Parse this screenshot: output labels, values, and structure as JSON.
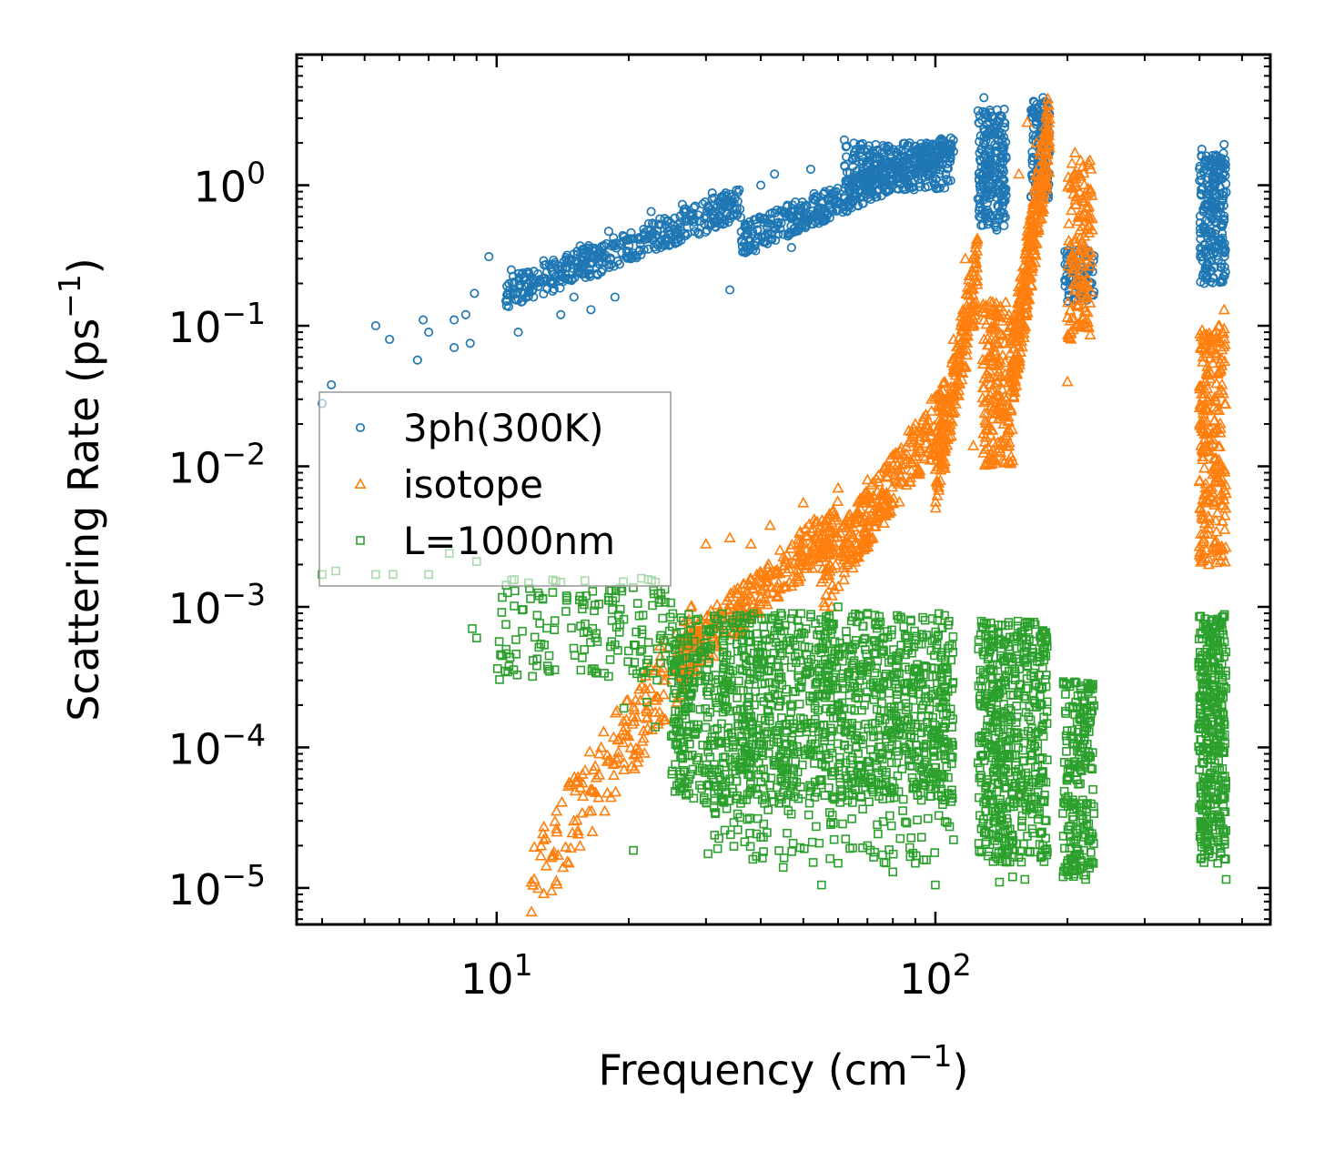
{
  "chart_data": {
    "type": "scatter",
    "xscale": "log",
    "yscale": "log",
    "xlim": [
      3.5,
      580
    ],
    "ylim": [
      5.5e-06,
      8.5
    ],
    "xlabel": {
      "base": "Frequency (cm",
      "sup": "−1",
      "tail": ")"
    },
    "ylabel": {
      "base": "Scattering Rate (ps",
      "sup": "−1",
      "tail": ")"
    },
    "xticks": [
      {
        "value": 10,
        "base": "10",
        "exp": "1"
      },
      {
        "value": 100,
        "base": "10",
        "exp": "2"
      }
    ],
    "yticks": [
      {
        "value": 1,
        "base": "10",
        "exp": "0"
      },
      {
        "value": 0.1,
        "base": "10",
        "exp": "−1"
      },
      {
        "value": 0.01,
        "base": "10",
        "exp": "−2"
      },
      {
        "value": 0.001,
        "base": "10",
        "exp": "−3"
      },
      {
        "value": 0.0001,
        "base": "10",
        "exp": "−4"
      },
      {
        "value": 1e-05,
        "base": "10",
        "exp": "−5"
      }
    ],
    "legend_position": "center-left",
    "series": [
      {
        "name": "3ph(300K)",
        "marker": "circle",
        "color": "#1f77b4",
        "points": [
          [
            4.0,
            0.028
          ],
          [
            4.2,
            0.038
          ],
          [
            5.3,
            0.1
          ],
          [
            5.7,
            0.08
          ],
          [
            6.6,
            0.057
          ],
          [
            6.8,
            0.11
          ],
          [
            7.0,
            0.09
          ],
          [
            8.0,
            0.07
          ],
          [
            8.0,
            0.11
          ],
          [
            8.5,
            0.12
          ],
          [
            8.7,
            0.075
          ],
          [
            8.9,
            0.17
          ],
          [
            9.6,
            0.31
          ],
          [
            10.5,
            0.15
          ],
          [
            10.8,
            0.25
          ],
          [
            11.2,
            0.09
          ],
          [
            11.5,
            0.22
          ],
          [
            12.2,
            0.2
          ],
          [
            12.8,
            0.29
          ],
          [
            13.3,
            0.2
          ],
          [
            14.0,
            0.12
          ],
          [
            14.5,
            0.26
          ],
          [
            15.0,
            0.16
          ],
          [
            15.5,
            0.37
          ],
          [
            16.4,
            0.13
          ],
          [
            17.0,
            0.23
          ],
          [
            18.0,
            0.47
          ],
          [
            18.6,
            0.16
          ],
          [
            19.3,
            0.33
          ],
          [
            21.0,
            0.42
          ],
          [
            22.5,
            0.65
          ],
          [
            24.5,
            0.56
          ],
          [
            26.5,
            0.73
          ],
          [
            28.0,
            0.62
          ],
          [
            31.0,
            0.88
          ],
          [
            34.0,
            0.18
          ],
          [
            36.0,
            0.59
          ],
          [
            40.0,
            1.0
          ],
          [
            43.0,
            1.2
          ],
          [
            46.0,
            0.72
          ],
          [
            47.0,
            0.36
          ],
          [
            52.0,
            1.3
          ],
          [
            56.0,
            0.9
          ],
          [
            62.0,
            2.1
          ],
          [
            68.0,
            1.6
          ],
          [
            72.0,
            1.75
          ],
          [
            78.0,
            1.9
          ],
          [
            85.0,
            1.6
          ],
          [
            95.0,
            1.5
          ],
          [
            106.0,
            1.1
          ],
          [
            129.0,
            4.2
          ],
          [
            138.0,
            0.48
          ],
          [
            176.0,
            4.2
          ],
          [
            200.0,
            0.27
          ],
          [
            225.0,
            0.2
          ],
          [
            405.0,
            1.8
          ],
          [
            410.0,
            0.2
          ],
          [
            455.0,
            1.95
          ]
        ],
        "bands": [
          {
            "x": [
              10.5,
              36
            ],
            "y": [
              0.17,
              0.75
            ],
            "n": 420,
            "trend": true
          },
          {
            "x": [
              36,
              110
            ],
            "y": [
              0.4,
              1.8
            ],
            "n": 450,
            "trend": true
          },
          {
            "x": [
              62,
              110
            ],
            "y": [
              0.9,
              2.0
            ],
            "n": 220,
            "trend": false
          },
          {
            "x": [
              125,
              145
            ],
            "y": [
              0.5,
              3.5
            ],
            "n": 220,
            "trend": false
          },
          {
            "x": [
              165,
              182
            ],
            "y": [
              0.8,
              4.0
            ],
            "n": 130,
            "trend": false
          },
          {
            "x": [
              196,
              230
            ],
            "y": [
              0.15,
              0.35
            ],
            "n": 80,
            "trend": false
          },
          {
            "x": [
              400,
              460
            ],
            "y": [
              0.2,
              1.7
            ],
            "n": 240,
            "trend": false
          }
        ]
      },
      {
        "name": "isotope",
        "marker": "triangle",
        "color": "#ff7f0e",
        "points": [
          [
            12.0,
            1.1e-05
          ],
          [
            13.5,
            1.8e-05
          ],
          [
            15.0,
            3e-05
          ],
          [
            16.5,
            5e-05
          ],
          [
            18.0,
            8e-05
          ],
          [
            20.0,
            0.00012
          ],
          [
            22.0,
            0.00018
          ],
          [
            24.0,
            0.0003
          ],
          [
            26.0,
            0.00046
          ],
          [
            28.0,
            0.0007
          ],
          [
            30.0,
            0.0028
          ],
          [
            34.0,
            0.0031
          ],
          [
            38.0,
            0.0028
          ],
          [
            42.0,
            0.0038
          ],
          [
            50.0,
            0.0055
          ],
          [
            55.0,
            0.0015
          ],
          [
            58.0,
            0.001
          ],
          [
            60.0,
            0.007
          ],
          [
            70.0,
            0.008
          ],
          [
            80.0,
            0.012
          ],
          [
            90.0,
            0.02
          ],
          [
            98.0,
            0.03
          ],
          [
            105.0,
            0.04
          ],
          [
            110.0,
            0.08
          ],
          [
            117.0,
            0.3
          ],
          [
            122.0,
            0.014
          ],
          [
            135.0,
            0.013
          ],
          [
            143.0,
            0.02
          ],
          [
            150.0,
            0.011
          ],
          [
            155.0,
            1.2
          ],
          [
            162.0,
            2.8
          ],
          [
            170.0,
            2.0
          ],
          [
            200.0,
            0.04
          ],
          [
            208.0,
            1.7
          ],
          [
            225.0,
            1.5
          ],
          [
            425.0,
            0.07
          ],
          [
            455.0,
            0.13
          ],
          [
            402.0,
            0.005
          ],
          [
            420.0,
            0.002
          ]
        ],
        "bands": [
          {
            "x": [
              12,
              28
            ],
            "y": [
              1.1e-05,
              0.0006
            ],
            "n": 170,
            "trend": true
          },
          {
            "x": [
              26,
              60
            ],
            "y": [
              0.0004,
              0.004
            ],
            "n": 320,
            "trend": true
          },
          {
            "x": [
              55,
              105
            ],
            "y": [
              0.0015,
              0.025
            ],
            "n": 320,
            "trend": true
          },
          {
            "x": [
              100,
              125
            ],
            "y": [
              0.008,
              0.25
            ],
            "n": 220,
            "trend": true
          },
          {
            "x": [
              128,
              150
            ],
            "y": [
              0.01,
              0.15
            ],
            "n": 200,
            "trend": false
          },
          {
            "x": [
              150,
              182
            ],
            "y": [
              0.05,
              2.5
            ],
            "n": 300,
            "trend": true
          },
          {
            "x": [
              200,
              228
            ],
            "y": [
              0.08,
              1.5
            ],
            "n": 150,
            "trend": false
          },
          {
            "x": [
              400,
              460
            ],
            "y": [
              0.002,
              0.1
            ],
            "n": 240,
            "trend": false
          }
        ]
      },
      {
        "name": "L=1000nm",
        "marker": "square",
        "color": "#2ca02c",
        "points": [
          [
            4.0,
            0.0017
          ],
          [
            4.3,
            0.0018
          ],
          [
            5.3,
            0.0017
          ],
          [
            5.8,
            0.0017
          ],
          [
            7.0,
            0.0017
          ],
          [
            7.8,
            0.0024
          ],
          [
            9.0,
            0.0021
          ],
          [
            8.8,
            0.0007
          ],
          [
            9.0,
            0.0006
          ],
          [
            10.5,
            0.00075
          ],
          [
            11.0,
            0.0013
          ],
          [
            12.5,
            0.0012
          ],
          [
            14.0,
            0.0015
          ],
          [
            16.0,
            0.0012
          ],
          [
            18.0,
            0.00032
          ],
          [
            19.5,
            0.00019
          ],
          [
            20.5,
            1.85e-05
          ],
          [
            22.0,
            0.00021
          ],
          [
            23.0,
            0.00014
          ],
          [
            25.0,
            0.00012
          ],
          [
            28.0,
            7e-05
          ],
          [
            32.0,
            5e-05
          ],
          [
            36.0,
            4e-05
          ],
          [
            40.0,
            2.3e-05
          ],
          [
            45.0,
            1.4e-05
          ],
          [
            55.0,
            1.05e-05
          ],
          [
            60.0,
            1.5e-05
          ],
          [
            70.0,
            2e-05
          ],
          [
            80.0,
            1.3e-05
          ],
          [
            90.0,
            1.5e-05
          ],
          [
            100.0,
            1.05e-05
          ],
          [
            110.0,
            2.2e-05
          ],
          [
            130.0,
            2.5e-05
          ],
          [
            140.0,
            1.1e-05
          ],
          [
            150.0,
            1.2e-05
          ],
          [
            160.0,
            1.15e-05
          ],
          [
            175.0,
            2.5e-05
          ],
          [
            220.0,
            1.15e-05
          ],
          [
            405.0,
            2.8e-05
          ],
          [
            440.0,
            1.5e-05
          ],
          [
            460.0,
            1.15e-05
          ],
          [
            70.0,
            0.0009
          ],
          [
            60.0,
            0.001
          ]
        ],
        "bands": [
          {
            "x": [
              10,
              25
            ],
            "y": [
              0.0003,
              0.0016
            ],
            "n": 160,
            "trend": false
          },
          {
            "x": [
              25,
              110
            ],
            "y": [
              4e-05,
              0.0009
            ],
            "n": 1300,
            "trend": false
          },
          {
            "x": [
              30,
              110
            ],
            "y": [
              1.5e-05,
              0.00015
            ],
            "n": 200,
            "trend": false
          },
          {
            "x": [
              125,
              180
            ],
            "y": [
              1.5e-05,
              0.0008
            ],
            "n": 550,
            "trend": false
          },
          {
            "x": [
              195,
              230
            ],
            "y": [
              1.2e-05,
              0.0003
            ],
            "n": 220,
            "trend": false
          },
          {
            "x": [
              398,
              460
            ],
            "y": [
              1.5e-05,
              0.0009
            ],
            "n": 380,
            "trend": false
          }
        ]
      }
    ]
  }
}
